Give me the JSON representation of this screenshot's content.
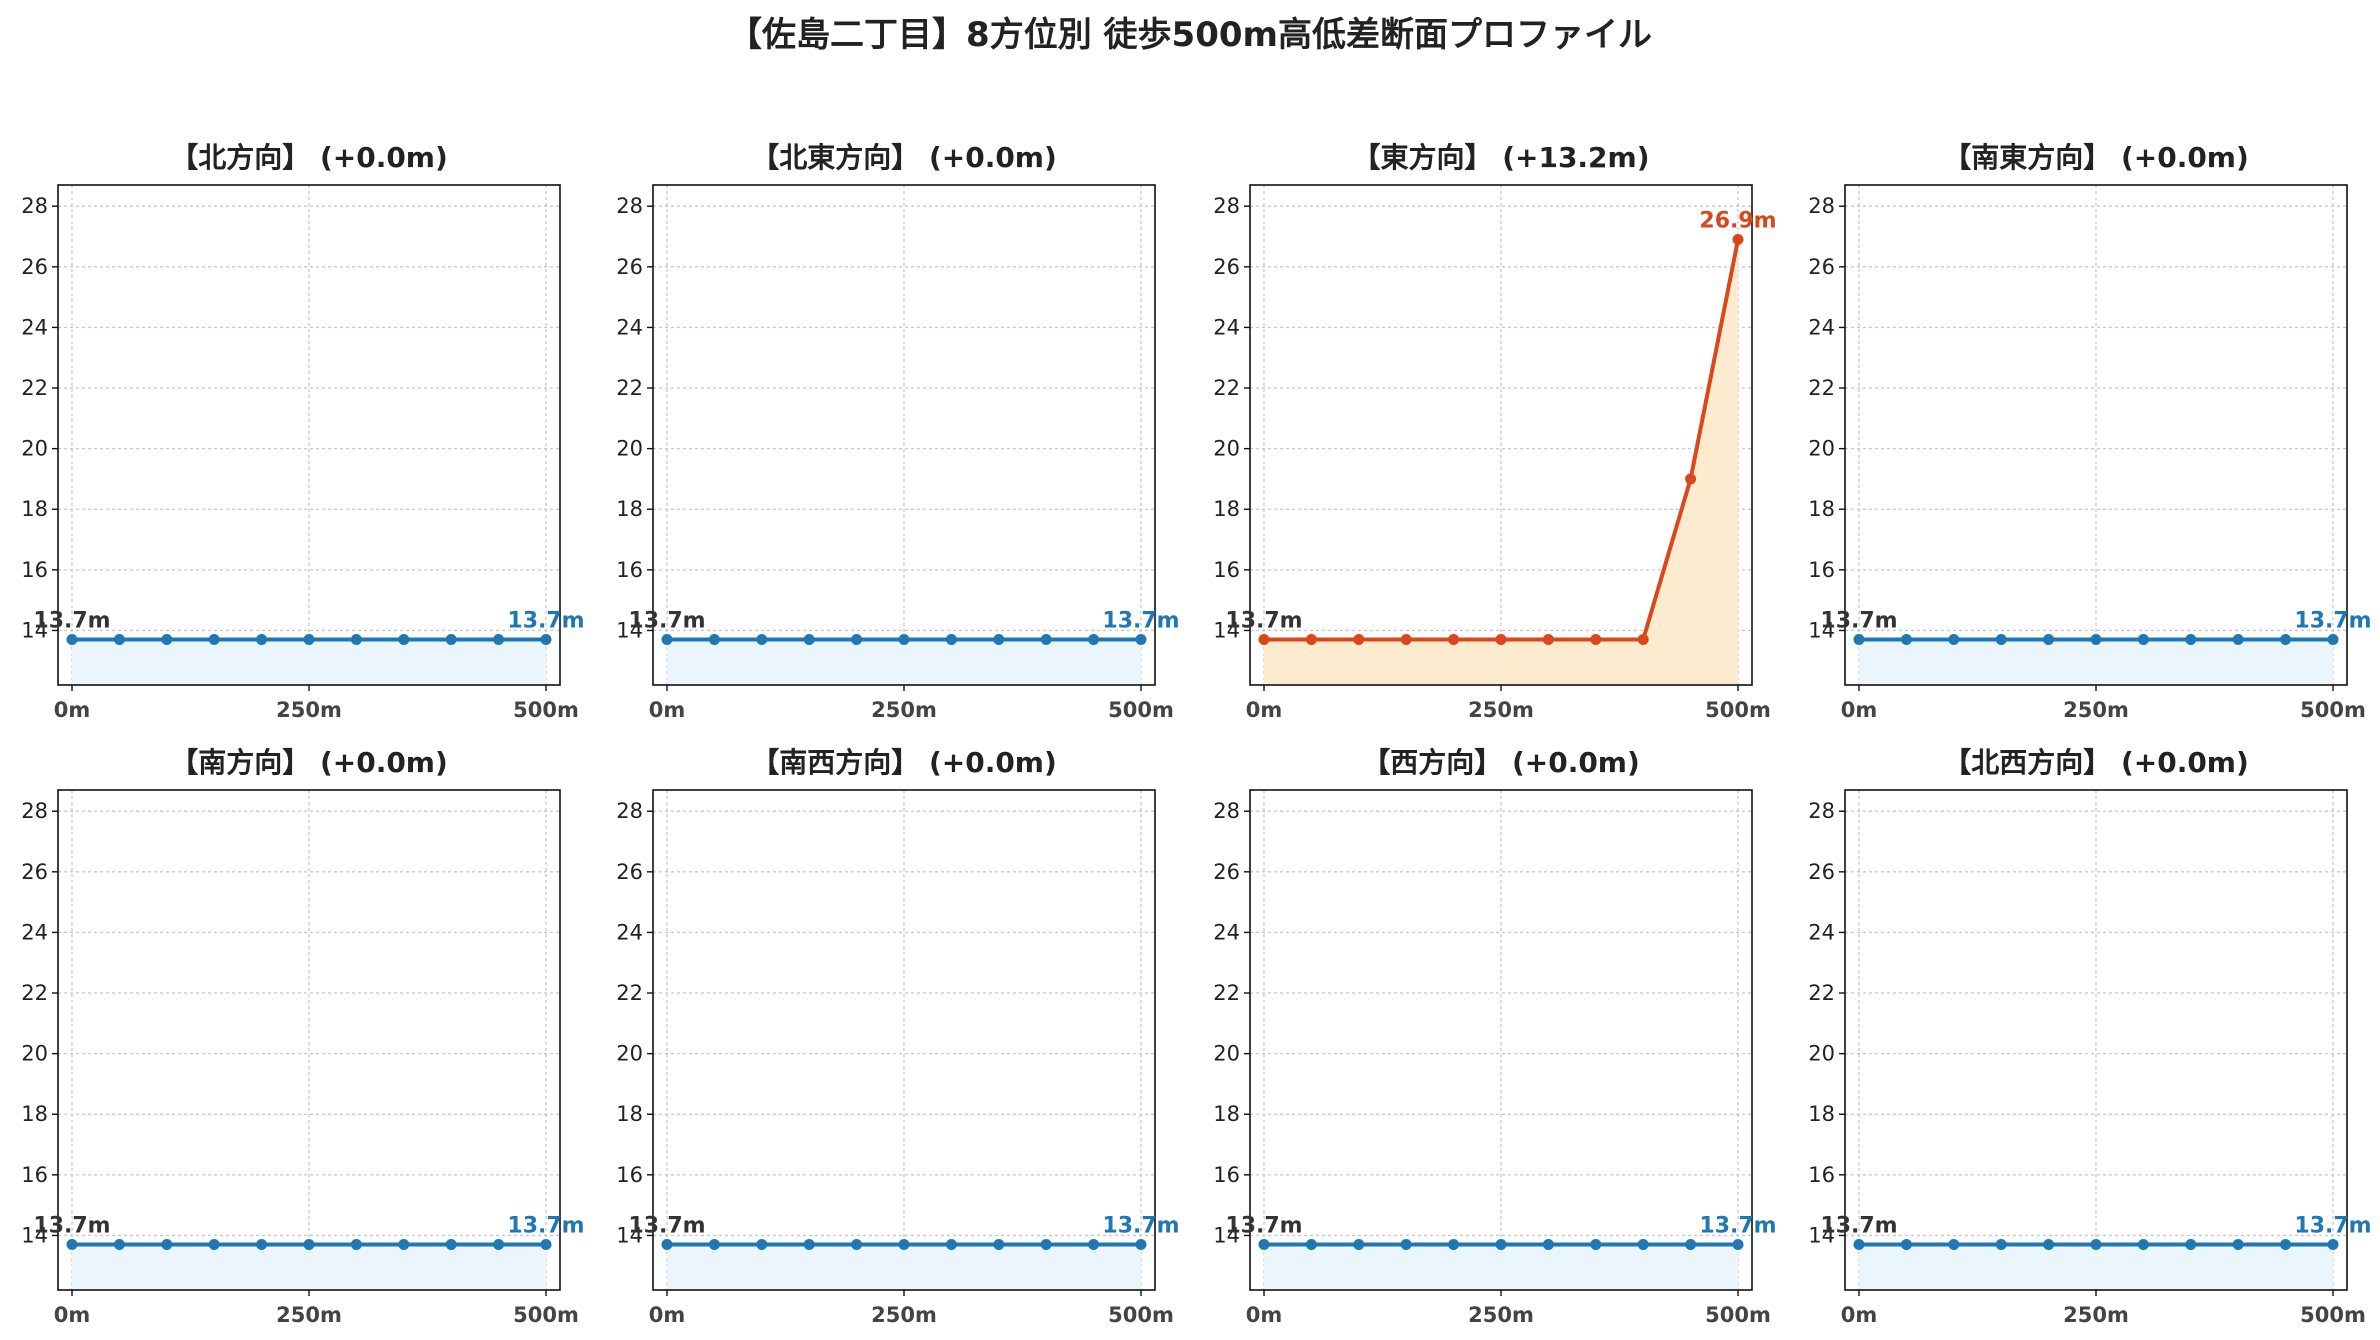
{
  "suptitle": "【佐島二丁目】8方位別 徒歩500m高低差断面プロファイル",
  "colors": {
    "flat_line": "#1f77b4",
    "flat_fill": "#eaf6fb",
    "rise_line": "#d9471b",
    "rise_fill": "#fdebd0",
    "start_label": "#333333"
  },
  "chart_data": [
    {
      "type": "line",
      "title": "【北方向】 (+0.0m)",
      "x": [
        0,
        50,
        100,
        150,
        200,
        250,
        300,
        350,
        400,
        450,
        500
      ],
      "y": [
        13.7,
        13.7,
        13.7,
        13.7,
        13.7,
        13.7,
        13.7,
        13.7,
        13.7,
        13.7,
        13.7
      ],
      "start_label": "13.7m",
      "end_label": "13.7m",
      "ylim": [
        12.2,
        28.7
      ],
      "yticks": [
        14,
        16,
        18,
        20,
        22,
        24,
        26,
        28
      ],
      "xticks": [
        "0m",
        "250m",
        "500m"
      ],
      "xtick_values": [
        0,
        250,
        500
      ],
      "grid": true,
      "rising": false
    },
    {
      "type": "line",
      "title": "【北東方向】 (+0.0m)",
      "x": [
        0,
        50,
        100,
        150,
        200,
        250,
        300,
        350,
        400,
        450,
        500
      ],
      "y": [
        13.7,
        13.7,
        13.7,
        13.7,
        13.7,
        13.7,
        13.7,
        13.7,
        13.7,
        13.7,
        13.7
      ],
      "start_label": "13.7m",
      "end_label": "13.7m",
      "ylim": [
        12.2,
        28.7
      ],
      "yticks": [
        14,
        16,
        18,
        20,
        22,
        24,
        26,
        28
      ],
      "xticks": [
        "0m",
        "250m",
        "500m"
      ],
      "xtick_values": [
        0,
        250,
        500
      ],
      "grid": true,
      "rising": false
    },
    {
      "type": "line",
      "title": "【東方向】 (+13.2m)",
      "x": [
        0,
        50,
        100,
        150,
        200,
        250,
        300,
        350,
        400,
        450,
        500
      ],
      "y": [
        13.7,
        13.7,
        13.7,
        13.7,
        13.7,
        13.7,
        13.7,
        13.7,
        13.7,
        19.0,
        26.9
      ],
      "start_label": "13.7m",
      "end_label": "26.9m",
      "ylim": [
        12.2,
        28.7
      ],
      "yticks": [
        14,
        16,
        18,
        20,
        22,
        24,
        26,
        28
      ],
      "xticks": [
        "0m",
        "250m",
        "500m"
      ],
      "xtick_values": [
        0,
        250,
        500
      ],
      "grid": true,
      "rising": true
    },
    {
      "type": "line",
      "title": "【南東方向】 (+0.0m)",
      "x": [
        0,
        50,
        100,
        150,
        200,
        250,
        300,
        350,
        400,
        450,
        500
      ],
      "y": [
        13.7,
        13.7,
        13.7,
        13.7,
        13.7,
        13.7,
        13.7,
        13.7,
        13.7,
        13.7,
        13.7
      ],
      "start_label": "13.7m",
      "end_label": "13.7m",
      "ylim": [
        12.2,
        28.7
      ],
      "yticks": [
        14,
        16,
        18,
        20,
        22,
        24,
        26,
        28
      ],
      "xticks": [
        "0m",
        "250m",
        "500m"
      ],
      "xtick_values": [
        0,
        250,
        500
      ],
      "grid": true,
      "rising": false
    },
    {
      "type": "line",
      "title": "【南方向】 (+0.0m)",
      "x": [
        0,
        50,
        100,
        150,
        200,
        250,
        300,
        350,
        400,
        450,
        500
      ],
      "y": [
        13.7,
        13.7,
        13.7,
        13.7,
        13.7,
        13.7,
        13.7,
        13.7,
        13.7,
        13.7,
        13.7
      ],
      "start_label": "13.7m",
      "end_label": "13.7m",
      "ylim": [
        12.2,
        28.7
      ],
      "yticks": [
        14,
        16,
        18,
        20,
        22,
        24,
        26,
        28
      ],
      "xticks": [
        "0m",
        "250m",
        "500m"
      ],
      "xtick_values": [
        0,
        250,
        500
      ],
      "grid": true,
      "rising": false
    },
    {
      "type": "line",
      "title": "【南西方向】 (+0.0m)",
      "x": [
        0,
        50,
        100,
        150,
        200,
        250,
        300,
        350,
        400,
        450,
        500
      ],
      "y": [
        13.7,
        13.7,
        13.7,
        13.7,
        13.7,
        13.7,
        13.7,
        13.7,
        13.7,
        13.7,
        13.7
      ],
      "start_label": "13.7m",
      "end_label": "13.7m",
      "ylim": [
        12.2,
        28.7
      ],
      "yticks": [
        14,
        16,
        18,
        20,
        22,
        24,
        26,
        28
      ],
      "xticks": [
        "0m",
        "250m",
        "500m"
      ],
      "xtick_values": [
        0,
        250,
        500
      ],
      "grid": true,
      "rising": false
    },
    {
      "type": "line",
      "title": "【西方向】 (+0.0m)",
      "x": [
        0,
        50,
        100,
        150,
        200,
        250,
        300,
        350,
        400,
        450,
        500
      ],
      "y": [
        13.7,
        13.7,
        13.7,
        13.7,
        13.7,
        13.7,
        13.7,
        13.7,
        13.7,
        13.7,
        13.7
      ],
      "start_label": "13.7m",
      "end_label": "13.7m",
      "ylim": [
        12.2,
        28.7
      ],
      "yticks": [
        14,
        16,
        18,
        20,
        22,
        24,
        26,
        28
      ],
      "xticks": [
        "0m",
        "250m",
        "500m"
      ],
      "xtick_values": [
        0,
        250,
        500
      ],
      "grid": true,
      "rising": false
    },
    {
      "type": "line",
      "title": "【北西方向】 (+0.0m)",
      "x": [
        0,
        50,
        100,
        150,
        200,
        250,
        300,
        350,
        400,
        450,
        500
      ],
      "y": [
        13.7,
        13.7,
        13.7,
        13.7,
        13.7,
        13.7,
        13.7,
        13.7,
        13.7,
        13.7,
        13.7
      ],
      "start_label": "13.7m",
      "end_label": "13.7m",
      "ylim": [
        12.2,
        28.7
      ],
      "yticks": [
        14,
        16,
        18,
        20,
        22,
        24,
        26,
        28
      ],
      "xticks": [
        "0m",
        "250m",
        "500m"
      ],
      "xtick_values": [
        0,
        250,
        500
      ],
      "grid": true,
      "rising": false
    }
  ]
}
